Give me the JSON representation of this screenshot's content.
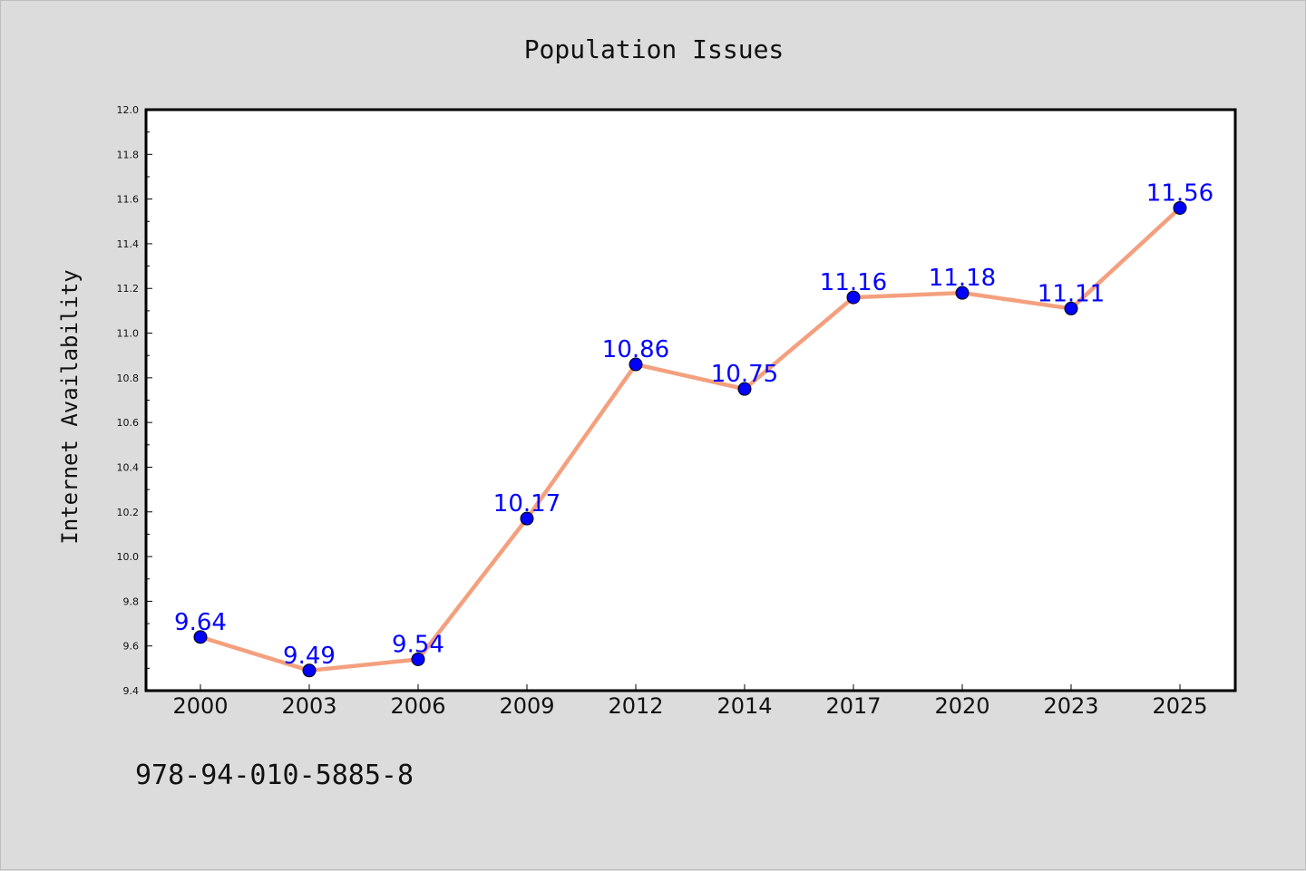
{
  "chart_data": {
    "type": "line",
    "title": "Population Issues",
    "xlabel": "",
    "ylabel": "Internet Availability",
    "categories": [
      "2000",
      "2003",
      "2006",
      "2009",
      "2012",
      "2014",
      "2017",
      "2020",
      "2023",
      "2025"
    ],
    "series": [
      {
        "values": [
          9.64,
          9.49,
          9.54,
          10.17,
          10.86,
          10.75,
          11.16,
          11.18,
          11.11,
          11.56
        ],
        "line_color": "#f4a07e",
        "marker_color": "#0000ff"
      }
    ],
    "data_labels": [
      "9.64",
      "9.49",
      "9.54",
      "10.17",
      "10.86",
      "10.75",
      "11.16",
      "11.18",
      "11.11",
      "11.56"
    ],
    "ylim": [
      9.4,
      12.0
    ],
    "yticks": [
      "9.4",
      "9.6",
      "9.8",
      "10.0",
      "10.2",
      "10.4",
      "10.6",
      "10.8",
      "11.0",
      "11.2",
      "11.4",
      "11.6",
      "11.8",
      "12.0"
    ],
    "grid": false,
    "legend": "none"
  },
  "footer": {
    "isbn": "978-94-010-5885-8"
  },
  "colors": {
    "background": "#dcdcdc",
    "plot_background": "#ffffff",
    "line": "#f4a07e",
    "marker": "#0000ff",
    "data_label": "#0000ff"
  }
}
